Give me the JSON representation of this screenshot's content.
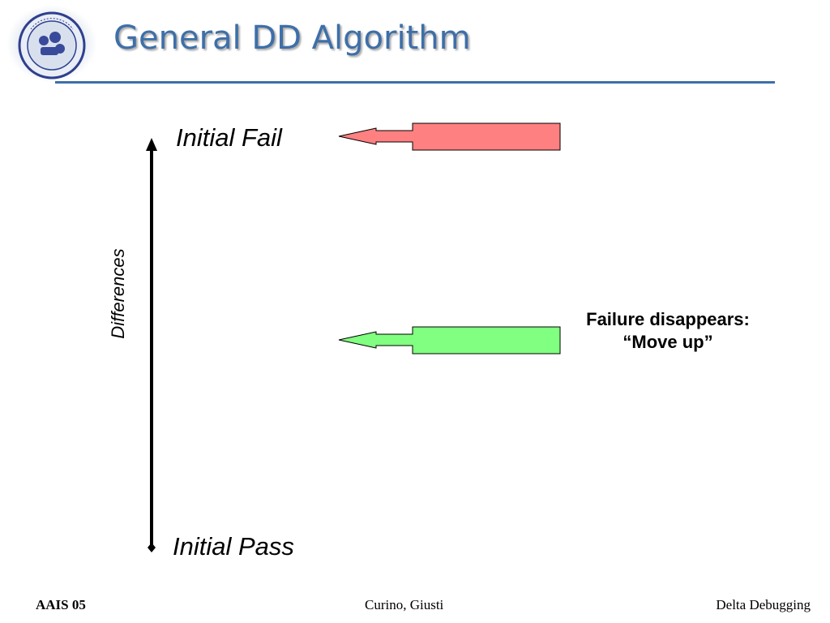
{
  "slide": {
    "title": "General DD Algorithm",
    "logo": "politecnico-di-milano-seal",
    "accent_color": "#3e6fa8"
  },
  "diagram": {
    "axis_label": "Differences",
    "top_label": "Initial Fail",
    "bottom_label": "Initial Pass",
    "arrows": [
      {
        "name": "fail-arrow",
        "color": "#ff8080"
      },
      {
        "name": "pass-arrow",
        "color": "#80ff80"
      }
    ],
    "note": {
      "line1": "Failure disappears:",
      "line2": "“Move up”"
    }
  },
  "footer": {
    "left": "AAIS 05",
    "center": "Curino, Giusti",
    "right": "Delta Debugging"
  }
}
